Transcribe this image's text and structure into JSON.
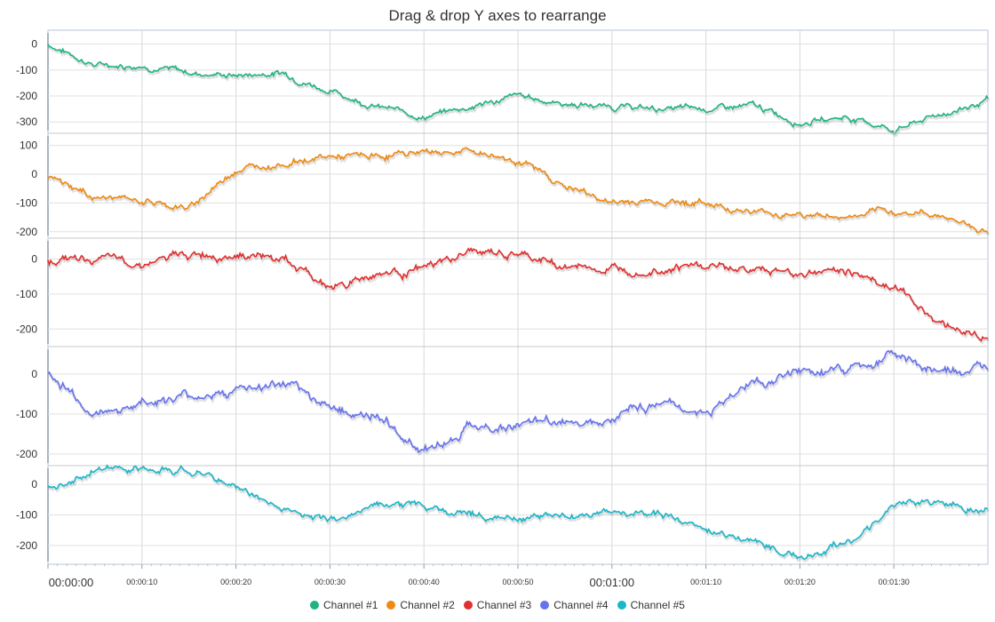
{
  "chart_data": {
    "type": "line",
    "title": "Drag & drop Y axes to rearrange",
    "x_ticks": [
      "00:00:00",
      "00:00:10",
      "00:00:20",
      "00:00:30",
      "00:00:40",
      "00:00:50",
      "00:01:00",
      "00:01:10",
      "00:01:20",
      "00:01:30"
    ],
    "x_range_seconds": [
      0,
      100
    ],
    "legend_position": "bottom-center",
    "grid": true,
    "series": [
      {
        "name": "Channel #1",
        "color": "#1fb383",
        "ylim": [
          -330,
          40
        ],
        "y_ticks": [
          0,
          -100,
          -200,
          -300
        ],
        "x": [
          0,
          5,
          10,
          15,
          20,
          25,
          30,
          35,
          40,
          45,
          50,
          55,
          60,
          65,
          70,
          75,
          80,
          85,
          90,
          95,
          100
        ],
        "values": [
          0,
          -80,
          -80,
          -110,
          -120,
          -110,
          -180,
          -240,
          -280,
          -240,
          -200,
          -230,
          -240,
          -250,
          -250,
          -240,
          -300,
          -280,
          -330,
          -270,
          -220
        ]
      },
      {
        "name": "Channel #2",
        "color": "#ef8a12",
        "ylim": [
          -210,
          130
        ],
        "y_ticks": [
          100,
          0,
          -100,
          -200
        ],
        "x": [
          0,
          5,
          10,
          15,
          20,
          25,
          30,
          35,
          40,
          45,
          50,
          55,
          60,
          65,
          70,
          75,
          80,
          85,
          90,
          95,
          100
        ],
        "values": [
          -10,
          -80,
          -90,
          -120,
          20,
          40,
          60,
          60,
          80,
          80,
          50,
          -40,
          -100,
          -90,
          -100,
          -130,
          -140,
          -150,
          -130,
          -140,
          -200
        ]
      },
      {
        "name": "Channel #3",
        "color": "#e0302f",
        "ylim": [
          -240,
          50
        ],
        "y_ticks": [
          0,
          -100,
          -200
        ],
        "x": [
          0,
          5,
          10,
          15,
          20,
          25,
          30,
          35,
          40,
          45,
          50,
          55,
          60,
          65,
          70,
          75,
          80,
          85,
          90,
          95,
          100
        ],
        "values": [
          0,
          0,
          -10,
          10,
          20,
          0,
          -80,
          -40,
          -30,
          20,
          10,
          -20,
          -30,
          -20,
          -20,
          -30,
          -40,
          -30,
          -80,
          -180,
          -230
        ]
      },
      {
        "name": "Channel #4",
        "color": "#6673ee",
        "ylim": [
          -220,
          60
        ],
        "y_ticks": [
          0,
          -100,
          -200
        ],
        "x": [
          0,
          5,
          10,
          15,
          20,
          25,
          30,
          35,
          40,
          45,
          50,
          55,
          60,
          65,
          70,
          75,
          80,
          85,
          90,
          95,
          100
        ],
        "values": [
          0,
          -100,
          -70,
          -60,
          -40,
          -30,
          -80,
          -110,
          -190,
          -130,
          -130,
          -120,
          -100,
          -70,
          -100,
          -20,
          0,
          10,
          50,
          0,
          10
        ]
      },
      {
        "name": "Channel #5",
        "color": "#1bb6c9",
        "ylim": [
          -250,
          50
        ],
        "y_ticks": [
          0,
          -100,
          -200
        ],
        "x": [
          0,
          5,
          10,
          15,
          20,
          25,
          30,
          35,
          40,
          45,
          50,
          55,
          60,
          65,
          70,
          75,
          80,
          85,
          90,
          95,
          100
        ],
        "values": [
          0,
          50,
          40,
          50,
          -10,
          -80,
          -120,
          -60,
          -70,
          -100,
          -110,
          -100,
          -100,
          -100,
          -150,
          -180,
          -240,
          -190,
          -80,
          -50,
          -90
        ]
      }
    ]
  }
}
